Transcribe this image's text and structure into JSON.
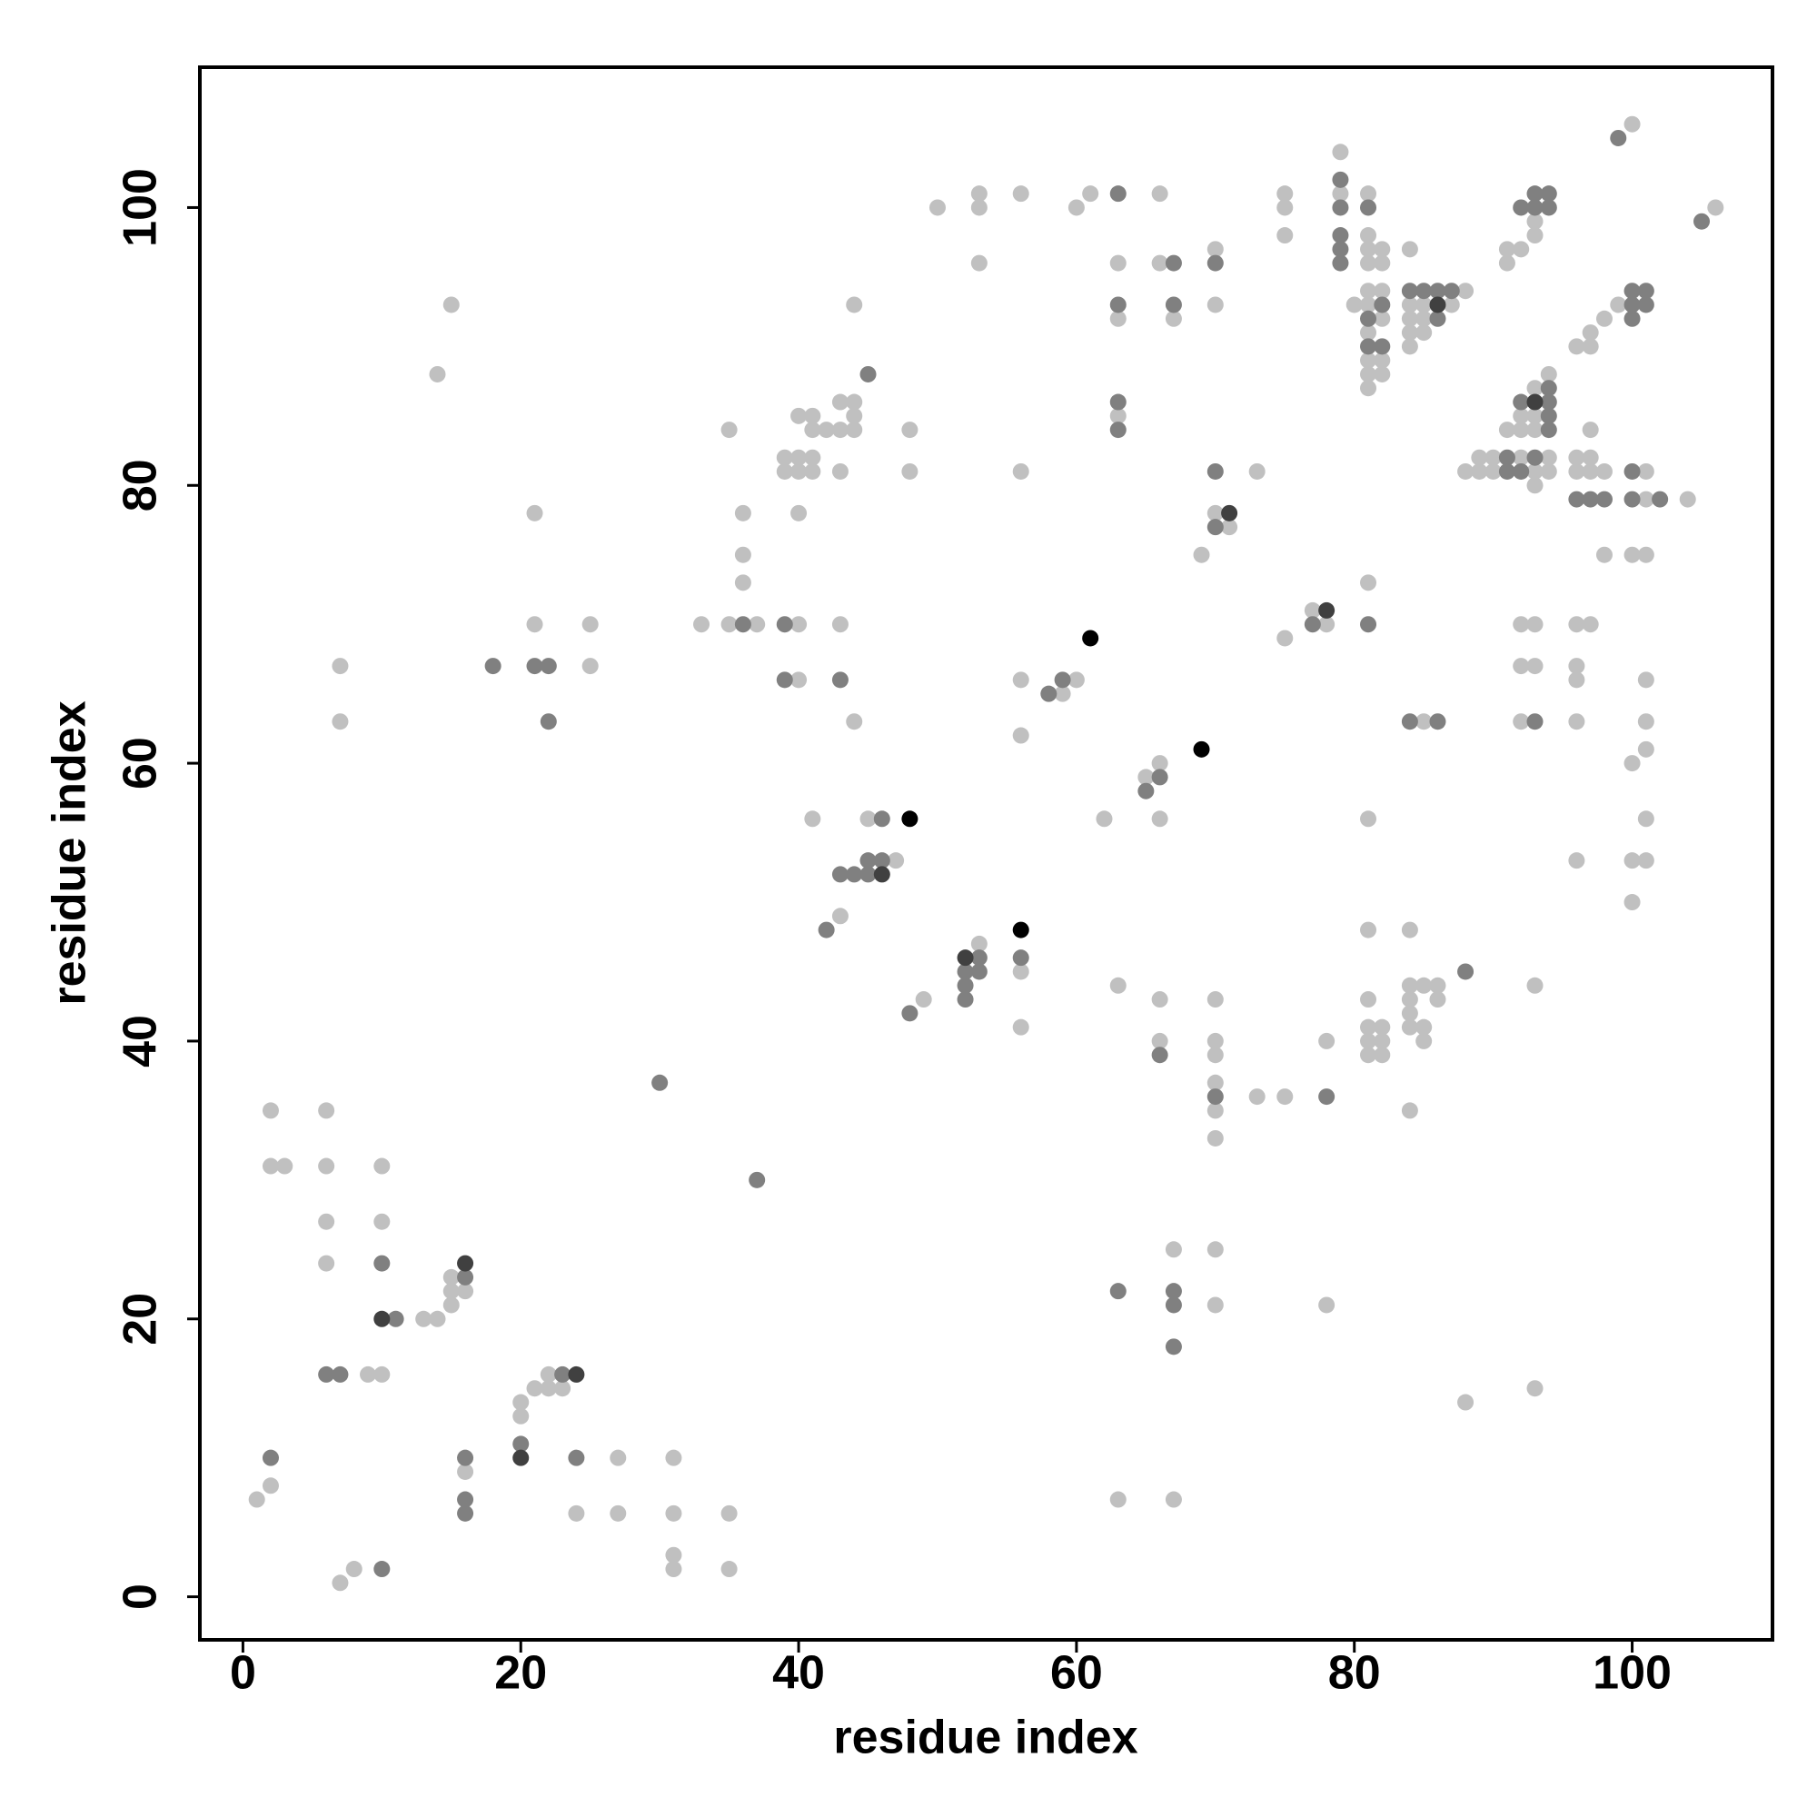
{
  "chart_data": {
    "type": "scatter",
    "xlabel": "residue index",
    "ylabel": "residue index",
    "xlim": [
      -3.1,
      110.1
    ],
    "ylim": [
      -3.1,
      110.1
    ],
    "xticks": [
      0,
      20,
      40,
      60,
      80,
      100
    ],
    "yticks": [
      0,
      20,
      40,
      60,
      80,
      100
    ],
    "grid": false,
    "series": [
      {
        "color": "#c0c0c0",
        "x": [
          1,
          2,
          2,
          2,
          3,
          6,
          6,
          6,
          6,
          7,
          7,
          7,
          8,
          9,
          10,
          10,
          10,
          13,
          14,
          15,
          15,
          15,
          16,
          14,
          15,
          16,
          20,
          20,
          21,
          22,
          22,
          23,
          24,
          27,
          27,
          21,
          21,
          25,
          25,
          31,
          31,
          31,
          31,
          35,
          35,
          33,
          35,
          37,
          35,
          36,
          36,
          36,
          39,
          39,
          40,
          40,
          41,
          41,
          40,
          41,
          41,
          42,
          43,
          43,
          44,
          44,
          44,
          43,
          40,
          44,
          48,
          48,
          40,
          43,
          40,
          44,
          41,
          45,
          47,
          43,
          49,
          53,
          56,
          56,
          50,
          53,
          53,
          53,
          56,
          56,
          60,
          61,
          63,
          63,
          63,
          66,
          66,
          67,
          70,
          70,
          56,
          56,
          59,
          60,
          62,
          65,
          66,
          66,
          69,
          70,
          71,
          73,
          63,
          66,
          66,
          70,
          70,
          70,
          70,
          70,
          70,
          73,
          75,
          78,
          67,
          70,
          70,
          63,
          67,
          78,
          75,
          75,
          75,
          75,
          77,
          78,
          79,
          79,
          80,
          81,
          81,
          81,
          81,
          81,
          81,
          81,
          81,
          81,
          81,
          82,
          82,
          82,
          82,
          82,
          82,
          84,
          84,
          84,
          84,
          84,
          85,
          85,
          85,
          87,
          88,
          81,
          81,
          81,
          81,
          81,
          81,
          81,
          82,
          82,
          82,
          85,
          84,
          84,
          84,
          84,
          84,
          85,
          85,
          85,
          86,
          86,
          84,
          88,
          88,
          89,
          89,
          90,
          90,
          91,
          92,
          92,
          92,
          93,
          93,
          93,
          93,
          93,
          94,
          94,
          94,
          91,
          91,
          92,
          93,
          93,
          92,
          92,
          92,
          93,
          93,
          93,
          93,
          96,
          97,
          97,
          98,
          99,
          100,
          96,
          96,
          97,
          97,
          97,
          98,
          98,
          101,
          101,
          104,
          100,
          101,
          96,
          97,
          96,
          96,
          96,
          96,
          101,
          101,
          101,
          100,
          101,
          100,
          101,
          100,
          106
        ],
        "values": [
          7,
          8,
          35,
          31,
          31,
          35,
          31,
          27,
          24,
          67,
          63,
          1,
          2,
          16,
          16,
          31,
          27,
          20,
          20,
          21,
          22,
          23,
          22,
          88,
          93,
          9,
          14,
          13,
          15,
          15,
          16,
          15,
          6,
          10,
          6,
          78,
          70,
          70,
          67,
          10,
          6,
          3,
          2,
          6,
          2,
          70,
          70,
          70,
          84,
          78,
          75,
          73,
          82,
          81,
          82,
          81,
          82,
          81,
          85,
          85,
          84,
          84,
          84,
          86,
          86,
          85,
          84,
          81,
          78,
          93,
          84,
          81,
          70,
          70,
          66,
          63,
          56,
          56,
          53,
          49,
          43,
          47,
          45,
          41,
          100,
          101,
          100,
          96,
          101,
          81,
          100,
          101,
          96,
          92,
          85,
          101,
          96,
          92,
          97,
          93,
          66,
          62,
          65,
          66,
          56,
          59,
          60,
          56,
          75,
          78,
          77,
          81,
          44,
          43,
          40,
          43,
          40,
          39,
          37,
          35,
          33,
          36,
          36,
          40,
          25,
          25,
          21,
          7,
          7,
          21,
          101,
          100,
          98,
          69,
          71,
          70,
          104,
          101,
          93,
          101,
          98,
          97,
          96,
          94,
          93,
          91,
          89,
          88,
          87,
          97,
          96,
          94,
          92,
          89,
          88,
          97,
          93,
          92,
          91,
          90,
          93,
          92,
          91,
          93,
          94,
          73,
          56,
          48,
          43,
          41,
          40,
          39,
          41,
          40,
          39,
          63,
          48,
          44,
          43,
          42,
          41,
          44,
          41,
          40,
          44,
          43,
          35,
          14,
          81,
          82,
          81,
          82,
          81,
          84,
          85,
          84,
          82,
          85,
          84,
          81,
          80,
          87,
          88,
          82,
          81,
          97,
          96,
          97,
          98,
          99,
          70,
          67,
          63,
          70,
          67,
          44,
          15,
          90,
          91,
          90,
          92,
          93,
          106,
          82,
          81,
          84,
          82,
          81,
          81,
          75,
          81,
          79,
          79,
          75,
          75,
          70,
          70,
          67,
          66,
          63,
          53,
          66,
          63,
          61,
          60,
          56,
          53,
          53,
          50,
          100
        ]
      },
      {
        "color": "#808080",
        "x": [
          2,
          6,
          7,
          10,
          10,
          11,
          16,
          16,
          16,
          16,
          18,
          20,
          23,
          24,
          21,
          22,
          22,
          30,
          37,
          36,
          45,
          39,
          39,
          43,
          46,
          43,
          44,
          45,
          45,
          46,
          42,
          48,
          52,
          52,
          52,
          53,
          53,
          56,
          63,
          63,
          63,
          63,
          67,
          67,
          70,
          58,
          59,
          65,
          66,
          70,
          70,
          66,
          70,
          78,
          63,
          67,
          67,
          67,
          77,
          79,
          79,
          79,
          79,
          79,
          81,
          81,
          81,
          82,
          82,
          84,
          85,
          86,
          86,
          87,
          81,
          84,
          86,
          88,
          91,
          91,
          92,
          93,
          92,
          94,
          94,
          94,
          94,
          92,
          93,
          93,
          94,
          94,
          93,
          99,
          100,
          100,
          100,
          101,
          101,
          96,
          97,
          98,
          100,
          100,
          102,
          105
        ],
        "values": [
          10,
          16,
          16,
          2,
          24,
          20,
          23,
          10,
          7,
          6,
          67,
          11,
          16,
          10,
          67,
          67,
          63,
          37,
          30,
          70,
          88,
          70,
          66,
          66,
          56,
          52,
          52,
          52,
          53,
          53,
          48,
          42,
          45,
          44,
          43,
          46,
          45,
          46,
          101,
          93,
          86,
          84,
          96,
          93,
          96,
          65,
          66,
          58,
          59,
          81,
          77,
          39,
          36,
          36,
          22,
          22,
          21,
          18,
          70,
          102,
          100,
          98,
          97,
          96,
          100,
          92,
          90,
          93,
          90,
          94,
          94,
          94,
          92,
          94,
          70,
          63,
          63,
          45,
          82,
          81,
          81,
          82,
          86,
          87,
          86,
          85,
          84,
          100,
          100,
          101,
          101,
          100,
          63,
          105,
          94,
          93,
          92,
          94,
          93,
          79,
          79,
          79,
          81,
          79,
          79,
          99
        ]
      },
      {
        "color": "#404040",
        "x": [
          10,
          16,
          20,
          24,
          46,
          52,
          71,
          78,
          86,
          93
        ],
        "values": [
          20,
          24,
          10,
          16,
          52,
          46,
          78,
          71,
          93,
          86
        ]
      },
      {
        "color": "#000000",
        "x": [
          48,
          56,
          61,
          69
        ],
        "values": [
          56,
          48,
          69,
          61
        ]
      }
    ]
  }
}
